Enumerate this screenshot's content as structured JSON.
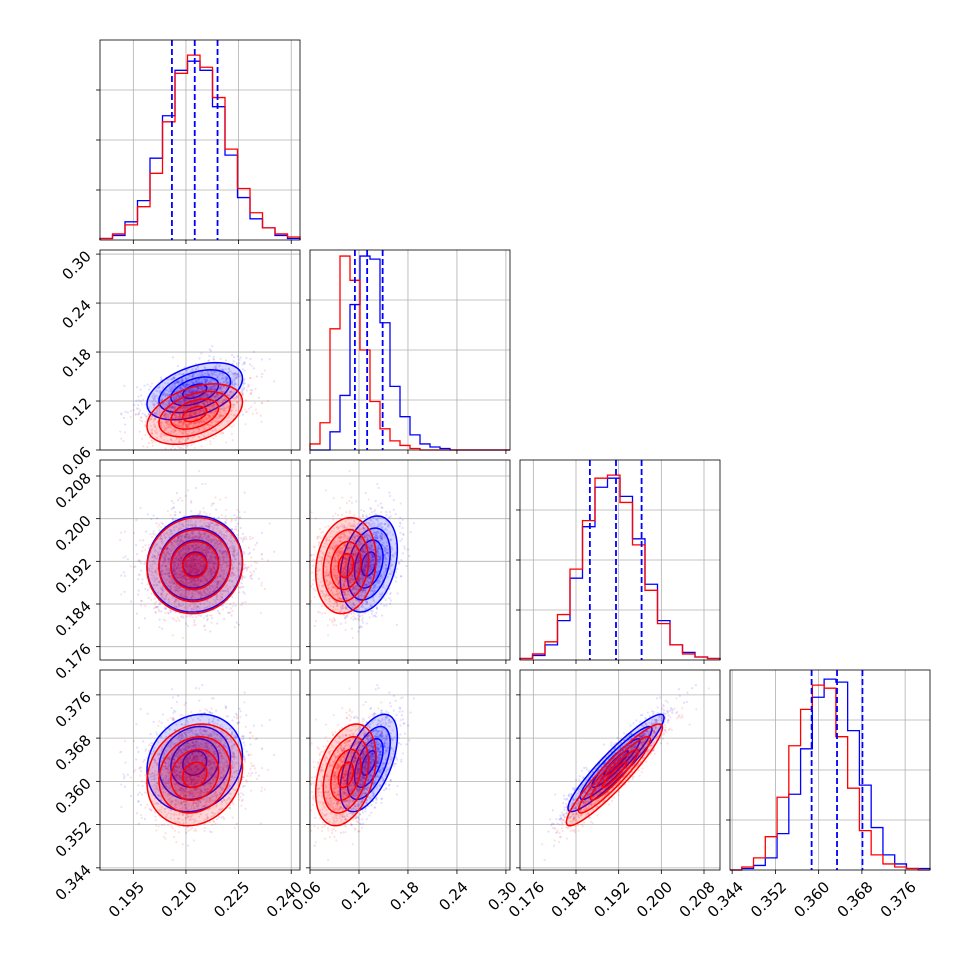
{
  "chart_data": {
    "type": "corner",
    "title": "",
    "grid": true,
    "series": [
      {
        "color": "#0000ff"
      },
      {
        "color": "#ff0000"
      }
    ],
    "parameters": [
      {
        "range": [
          0.1855,
          0.2425
        ],
        "ticks": [
          0.195,
          0.21,
          0.225,
          0.24
        ],
        "tick_labels": [
          "0.195",
          "0.210",
          "0.225",
          "0.240"
        ],
        "quantiles_series_0": [
          0.206,
          0.2125,
          0.219
        ]
      },
      {
        "range": [
          0.06,
          0.305
        ],
        "ticks": [
          0.06,
          0.12,
          0.18,
          0.24,
          0.3
        ],
        "tick_labels": [
          "0.06",
          "0.12",
          "0.18",
          "0.24",
          "0.30"
        ],
        "quantiles_series_0": [
          0.115,
          0.13,
          0.149
        ]
      },
      {
        "range": [
          0.1735,
          0.211
        ],
        "ticks": [
          0.176,
          0.184,
          0.192,
          0.2,
          0.208
        ],
        "tick_labels": [
          "0.176",
          "0.184",
          "0.192",
          "0.200",
          "0.208"
        ],
        "quantiles_series_0": [
          0.1866,
          0.1915,
          0.1963
        ]
      },
      {
        "range": [
          0.3436,
          0.3806
        ],
        "ticks": [
          0.344,
          0.352,
          0.36,
          0.368,
          0.376
        ],
        "tick_labels": [
          "0.344",
          "0.352",
          "0.360",
          "0.368",
          "0.376"
        ],
        "quantiles_series_0": [
          0.3587,
          0.3634,
          0.3681
        ]
      }
    ],
    "distributions": [
      {
        "name": "blue",
        "mean": [
          0.2125,
          0.132,
          0.1915,
          0.3634
        ],
        "sd": [
          0.0068,
          0.0175,
          0.0045,
          0.0045
        ],
        "corr": [
          [
            1,
            0.45,
            0.05,
            0.15
          ],
          [
            0.45,
            1,
            0.3,
            0.55
          ],
          [
            0.05,
            0.3,
            1,
            0.93
          ],
          [
            0.15,
            0.55,
            0.93,
            1
          ]
        ]
      },
      {
        "name": "red",
        "mean": [
          0.2125,
          0.104,
          0.1912,
          0.3612
        ],
        "sd": [
          0.0068,
          0.0185,
          0.0045,
          0.0047
        ],
        "corr": [
          [
            1,
            0.4,
            0.05,
            0.15
          ],
          [
            0.4,
            1,
            0.15,
            0.35
          ],
          [
            0.05,
            0.15,
            1,
            0.93
          ],
          [
            0.15,
            0.35,
            0.93,
            1
          ]
        ]
      }
    ],
    "histograms": [
      {
        "bins": [
          0.1855,
          0.2425
        ],
        "series_0": [
          0.5,
          1.5,
          6,
          13,
          27,
          41,
          56,
          59,
          56,
          44,
          28,
          14,
          7,
          4,
          1.5,
          0.5
        ],
        "series_1": [
          0.5,
          2,
          5,
          11,
          22,
          39,
          55,
          61,
          57,
          47,
          30,
          17,
          9,
          4,
          2,
          1
        ]
      },
      {
        "bins": [
          0.06,
          0.305
        ],
        "series_0": [
          0,
          0,
          6,
          18,
          48,
          64,
          63,
          42,
          21,
          11,
          5,
          2,
          1,
          0.5,
          0,
          0,
          0,
          0,
          0,
          0
        ],
        "series_1": [
          2,
          9,
          40,
          64,
          56,
          33,
          16,
          7,
          3,
          1.5,
          0.5,
          0,
          0,
          0,
          0,
          0,
          0,
          0,
          0,
          0
        ]
      },
      {
        "bins": [
          0.1735,
          0.211
        ],
        "series_0": [
          0.5,
          1.5,
          5,
          13,
          27,
          44,
          57,
          60,
          54,
          40,
          25,
          13,
          5,
          2.5,
          1,
          0.5
        ],
        "series_1": [
          0.5,
          2,
          6,
          15,
          30,
          46,
          60,
          61,
          52,
          38,
          23,
          12,
          5,
          2,
          1,
          0.5
        ]
      },
      {
        "bins": [
          0.3436,
          0.3806
        ],
        "series_0": [
          0,
          0.5,
          1.5,
          4,
          12,
          25,
          40,
          57,
          63,
          62,
          46,
          28,
          14,
          5,
          2,
          0.5,
          0.5
        ],
        "series_1": [
          0,
          1,
          4,
          11,
          24,
          41,
          53,
          61,
          60,
          44,
          27,
          13,
          5,
          2,
          1,
          0.5,
          0
        ]
      }
    ],
    "contour_levels": [
      0.118,
      0.393,
      0.675,
      0.865
    ]
  }
}
